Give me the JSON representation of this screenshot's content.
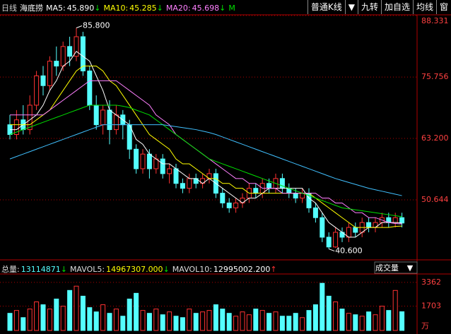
{
  "chart_data": {
    "type": "candlestick",
    "period": "日线",
    "title": "海底捞",
    "toolbar": [
      "普通K线",
      "▼",
      "九转",
      "加自选",
      "均线",
      "窗"
    ],
    "open": [
      66,
      64,
      67,
      65,
      70,
      76,
      74,
      79,
      78,
      82,
      80,
      84,
      77,
      70,
      66,
      69,
      65,
      68,
      66,
      61,
      57,
      60,
      57,
      59,
      56,
      57,
      54,
      53,
      55,
      54,
      55,
      56,
      52,
      50,
      49,
      50,
      51,
      53,
      52,
      54,
      53,
      55,
      53,
      52,
      51,
      52,
      49,
      47,
      43,
      41,
      44,
      43,
      45,
      44,
      46,
      45,
      46,
      47,
      46,
      47
    ],
    "close": [
      64,
      67,
      65,
      70,
      76,
      74,
      79,
      78,
      82,
      80,
      84,
      77,
      70,
      66,
      69,
      65,
      68,
      66,
      61,
      57,
      60,
      57,
      59,
      56,
      57,
      54,
      53,
      55,
      54,
      55,
      56,
      52,
      50,
      49,
      50,
      51,
      53,
      52,
      54,
      53,
      55,
      53,
      52,
      51,
      52,
      49,
      47,
      43,
      41,
      44,
      43,
      45,
      44,
      46,
      45,
      46,
      47,
      46,
      47,
      45.9
    ],
    "high": [
      68,
      69,
      70,
      72,
      77,
      78,
      80,
      82,
      83,
      84,
      85.8,
      85,
      78,
      72,
      70,
      71,
      70,
      69,
      67,
      62,
      61,
      61,
      60,
      60,
      58,
      58,
      55,
      56,
      56,
      56,
      57,
      57,
      53,
      51,
      51,
      52,
      54,
      54,
      55,
      55,
      56,
      56,
      54,
      53,
      53,
      53,
      50,
      48,
      44,
      45,
      45,
      46,
      46,
      47,
      47,
      47,
      48,
      48,
      48,
      48
    ],
    "low": [
      63,
      63,
      64,
      64,
      69,
      72,
      73,
      76,
      77,
      78,
      79,
      76,
      69,
      65,
      64,
      62,
      64,
      63,
      59,
      56,
      56,
      55,
      56,
      55,
      54,
      53,
      52,
      52,
      53,
      53,
      54,
      51,
      49,
      48,
      48,
      49,
      50,
      51,
      51,
      52,
      52,
      52,
      51,
      50,
      50,
      48,
      46,
      42,
      40.6,
      40.8,
      42,
      42,
      43,
      43,
      44,
      44,
      45,
      45,
      45,
      45
    ],
    "series": [
      {
        "name": "MA5:",
        "last_label": "45.890",
        "trend": "↓",
        "color": "#ffffff",
        "values": [
          65,
          65,
          66,
          67,
          68,
          70,
          73,
          75,
          78,
          79,
          81,
          80,
          79,
          76,
          73,
          69,
          68,
          67,
          66,
          63,
          62,
          60,
          59,
          58,
          58,
          57,
          56,
          55,
          55,
          54,
          55,
          54,
          53,
          52,
          51,
          50,
          51,
          51,
          52,
          53,
          53,
          53,
          53,
          53,
          53,
          51,
          50,
          48,
          46,
          45,
          44,
          43,
          43,
          44,
          45,
          45,
          46,
          46,
          46,
          45.89
        ]
      },
      {
        "name": "MA10:",
        "last_label": "45.285",
        "trend": "↓",
        "color": "#ffff00",
        "values": [
          66,
          66,
          66,
          66,
          67,
          68,
          69,
          71,
          73,
          75,
          77,
          78,
          78,
          78,
          77,
          75,
          74,
          72,
          70,
          68,
          66,
          64,
          63,
          62,
          61,
          59,
          58,
          58,
          57,
          56,
          55,
          55,
          54,
          54,
          53,
          53,
          52,
          52,
          52,
          52,
          52,
          52,
          52,
          52,
          52,
          52,
          51,
          50,
          49,
          48,
          47,
          46,
          45,
          45,
          45,
          45,
          45,
          45,
          45.2,
          45.285
        ]
      },
      {
        "name": "MA20:",
        "last_label": "45.698",
        "trend": "↓",
        "color": "#ff80ff",
        "values": [
          68,
          68,
          68,
          68,
          68,
          68,
          69,
          70,
          71,
          72,
          73,
          74,
          75,
          75,
          75,
          75,
          75,
          74,
          73,
          72,
          71,
          70,
          68,
          67,
          66,
          64,
          63,
          62,
          61,
          60,
          59,
          58,
          57,
          56,
          55,
          55,
          54,
          54,
          53,
          53,
          53,
          52,
          52,
          52,
          52,
          52,
          52,
          51,
          51,
          50,
          50,
          49,
          48,
          48,
          47,
          47,
          46.5,
          46,
          45.8,
          45.698
        ]
      },
      {
        "name": "M",
        "color": "#00e000",
        "values": [
          64,
          64.5,
          65,
          65.5,
          66,
          66.5,
          67,
          67.5,
          68,
          68.5,
          69,
          69.5,
          70,
          70,
          70,
          70,
          70,
          69.8,
          69.5,
          69,
          68.5,
          68,
          67,
          66,
          65,
          64,
          63,
          62,
          61,
          60,
          59,
          58.5,
          58,
          57.5,
          57,
          56.5,
          56,
          55.5,
          55,
          54.5,
          54,
          53.5,
          53,
          52.5,
          52,
          51.5,
          51,
          50.5,
          50,
          49.5,
          49,
          48.8,
          48.6,
          48.4,
          48.2,
          48,
          47.8,
          47.6,
          47.4,
          47.2
        ]
      },
      {
        "color": "#40c0ff",
        "values": [
          59,
          59.5,
          60,
          60.5,
          61,
          61.5,
          62,
          62.5,
          63,
          63.5,
          64,
          64.5,
          65,
          65.5,
          66,
          66,
          66,
          66,
          66,
          66,
          66,
          66,
          66,
          66,
          65.8,
          65.6,
          65.4,
          65.2,
          65,
          64.7,
          64.4,
          64,
          63.5,
          63,
          62.5,
          62,
          61.5,
          61,
          60.5,
          60,
          59.5,
          59,
          58.5,
          58,
          57.5,
          57,
          56.5,
          56,
          55.5,
          55,
          54.6,
          54.2,
          53.8,
          53.4,
          53,
          52.7,
          52.4,
          52.1,
          51.8,
          51.5
        ]
      }
    ],
    "up_color": "#ff3232",
    "down_color": "#54ffff",
    "ylim": [
      38.8,
      88.331
    ],
    "yticks": [
      {
        "value": 88.331,
        "label": "88.331"
      },
      75.756,
      {
        "value": 63.2,
        "label": "63.200"
      },
      50.644
    ],
    "high_label": "85.800",
    "low_label": "40.600",
    "volume": {
      "summary": [
        {
          "label": "总量:",
          "value": "13114871",
          "trend": "↓",
          "color": "#54ffff"
        },
        {
          "label": "MAVOL5:",
          "value": "14967307.000",
          "trend": "↓",
          "color": "#ffff00"
        },
        {
          "label": "MAVOL10:",
          "value": "12995002.200",
          "trend": "↑",
          "color": "#ffffff"
        }
      ],
      "indicator": "成交量",
      "unit": "万",
      "values": [
        1200,
        1400,
        900,
        1500,
        2000,
        1800,
        1500,
        2200,
        1700,
        2800,
        3100,
        2400,
        1600,
        1300,
        1800,
        1200,
        1500,
        1000,
        2200,
        2600,
        1400,
        1200,
        1500,
        1100,
        1300,
        1000,
        900,
        1500,
        1200,
        1300,
        1400,
        1800,
        1500,
        1200,
        1000,
        1300,
        1100,
        1500,
        1400,
        1200,
        1300,
        1000,
        1000,
        1200,
        900,
        1400,
        1800,
        3300,
        2400,
        2000,
        1500,
        1200,
        1100,
        1000,
        1300,
        1100,
        1700,
        1400,
        2800,
        1311.4871
      ],
      "ylim": [
        0,
        3950
      ],
      "yticks": [
        3362,
        1703
      ]
    }
  }
}
